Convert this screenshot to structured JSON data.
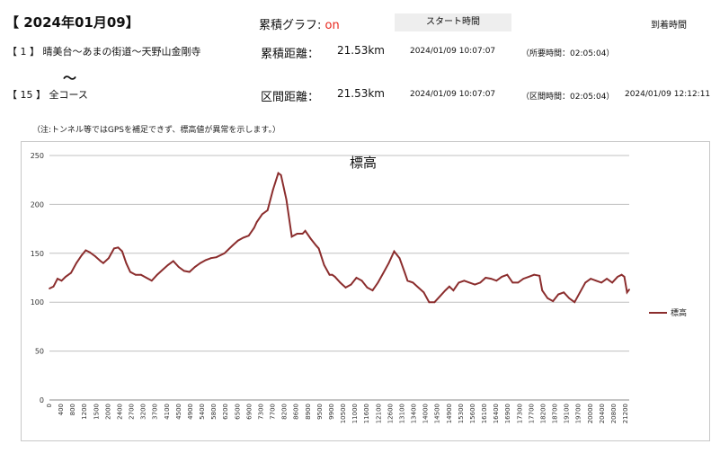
{
  "header": {
    "date": "【 2024年01月09】",
    "graph_label": "累積グラフ: ",
    "graph_state": "on",
    "start_time_button": "スタート時間",
    "arrival_time_label": "到着時間"
  },
  "segment1": {
    "route": "【 1 】 晴美台～あまの街道～天野山金剛寺",
    "distance_label": "累積距離：",
    "distance": "21.53km",
    "start": "2024/01/09 10:07:07",
    "elapsed": "（所要時間：02:05:04）"
  },
  "separator": "～",
  "segment2": {
    "route": "【 15 】 全コース",
    "distance_label": "区間距離：",
    "distance": "21.53km",
    "start": "2024/01/09 10:07:07",
    "elapsed": "（区間時間：02:05:04）",
    "arrival": "2024/01/09 12:12:11"
  },
  "note": "（注:トンネル等ではGPSを補足できず、標高値が異常を示します。）",
  "colors": {
    "series": "#8b2d2d",
    "on": "#e8261c",
    "grid": "#c0c0c0"
  },
  "chart_data": {
    "type": "line",
    "title": "標高",
    "xlabel": "",
    "ylabel": "",
    "ylim": [
      0,
      250
    ],
    "yticks": [
      0,
      50,
      100,
      150,
      200,
      250
    ],
    "xlim": [
      0,
      21530
    ],
    "grid": "horizontal",
    "legend_position": "right",
    "x_tick_labels": [
      "0",
      "400",
      "800",
      "1200",
      "1500",
      "2000",
      "2400",
      "2700",
      "3200",
      "3700",
      "4100",
      "4500",
      "4900",
      "5400",
      "5800",
      "6200",
      "6500",
      "6900",
      "7300",
      "7700",
      "8200",
      "8600",
      "8900",
      "9500",
      "9900",
      "10500",
      "11000",
      "11600",
      "12100",
      "12600",
      "13100",
      "13400",
      "14000",
      "14500",
      "14900",
      "15300",
      "15600",
      "16100",
      "16400",
      "16900",
      "17300",
      "17700",
      "18200",
      "18700",
      "19100",
      "19700",
      "20000",
      "20400",
      "20800",
      "21200"
    ],
    "series": [
      {
        "name": "標高",
        "x": [
          0,
          150,
          300,
          450,
          600,
          800,
          1000,
          1200,
          1350,
          1500,
          1700,
          1900,
          2000,
          2200,
          2400,
          2550,
          2700,
          2850,
          3000,
          3200,
          3400,
          3600,
          3800,
          4000,
          4200,
          4400,
          4600,
          4800,
          5000,
          5200,
          5400,
          5600,
          5800,
          6000,
          6200,
          6500,
          6800,
          7000,
          7200,
          7400,
          7600,
          7700,
          7900,
          8100,
          8300,
          8500,
          8600,
          8800,
          9000,
          9200,
          9400,
          9500,
          9700,
          9900,
          10000,
          10200,
          10400,
          10500,
          10600,
          10800,
          11000,
          11200,
          11400,
          11600,
          11800,
          12000,
          12200,
          12400,
          12600,
          12800,
          13000,
          13200,
          13300,
          13500,
          13700,
          13900,
          14100,
          14300,
          14500,
          14700,
          14850,
          15000,
          15200,
          15400,
          15600,
          15800,
          16000,
          16200,
          16400,
          16600,
          16800,
          17000,
          17200,
          17400,
          17600,
          17800,
          18000,
          18200,
          18300,
          18500,
          18700,
          18900,
          19100,
          19300,
          19500,
          19700,
          19900,
          20100,
          20300,
          20500,
          20700,
          20900,
          21100,
          21250,
          21350,
          21450,
          21530
        ],
        "y": [
          114,
          116,
          124,
          122,
          126,
          130,
          140,
          148,
          153,
          151,
          147,
          142,
          140,
          145,
          155,
          156,
          152,
          140,
          131,
          128,
          128,
          125,
          122,
          128,
          133,
          138,
          142,
          136,
          132,
          131,
          136,
          140,
          143,
          145,
          146,
          150,
          158,
          163,
          166,
          168,
          176,
          182,
          190,
          194,
          215,
          232,
          230,
          205,
          167,
          170,
          170,
          173,
          165,
          158,
          155,
          138,
          128,
          128,
          126,
          120,
          115,
          118,
          125,
          122,
          115,
          112,
          120,
          130,
          140,
          152,
          145,
          130,
          122,
          120,
          115,
          110,
          100,
          100,
          106,
          112,
          116,
          112,
          120,
          122,
          120,
          118,
          120,
          125,
          124,
          122,
          126,
          128,
          120,
          120,
          124,
          126,
          128,
          127,
          112,
          104,
          101,
          108,
          110,
          104,
          100,
          110,
          120,
          124,
          122,
          120,
          124,
          120,
          126,
          128,
          126,
          110,
          113
        ]
      }
    ]
  }
}
